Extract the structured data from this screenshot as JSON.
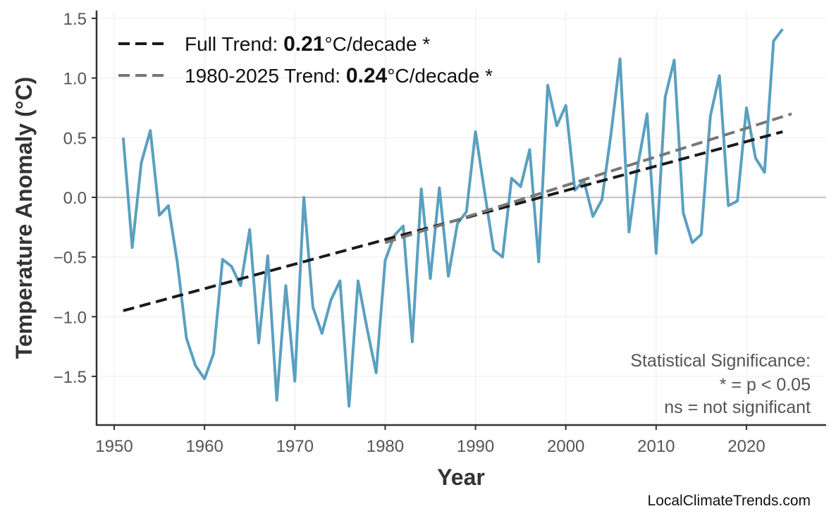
{
  "chart_data": {
    "type": "line",
    "xlabel": "Year",
    "ylabel": "Temperature Anomaly (°C)",
    "xlim": [
      1948,
      2029
    ],
    "ylim": [
      -1.9,
      1.56
    ],
    "xticks": [
      "1950",
      "1960",
      "1970",
      "1980",
      "1990",
      "2000",
      "2010",
      "2020"
    ],
    "yticks": [
      "1.5",
      "1.0",
      "0.5",
      "0.0",
      "−0.5",
      "−1.0",
      "−1.5"
    ],
    "grid": true,
    "legend_position": "top-left",
    "x": [
      1951,
      1952,
      1953,
      1954,
      1955,
      1956,
      1957,
      1958,
      1959,
      1960,
      1961,
      1962,
      1963,
      1964,
      1965,
      1966,
      1967,
      1968,
      1969,
      1970,
      1971,
      1972,
      1973,
      1974,
      1975,
      1976,
      1977,
      1978,
      1979,
      1980,
      1981,
      1982,
      1983,
      1984,
      1985,
      1986,
      1987,
      1988,
      1989,
      1990,
      1991,
      1992,
      1993,
      1994,
      1995,
      1996,
      1997,
      1998,
      1999,
      2000,
      2001,
      2002,
      2003,
      2004,
      2005,
      2006,
      2007,
      2008,
      2009,
      2010,
      2011,
      2012,
      2013,
      2014,
      2015,
      2016,
      2017,
      2018,
      2019,
      2020,
      2021,
      2022,
      2023,
      2024
    ],
    "series": [
      {
        "color": "#5aa0c0",
        "values": [
          0.5,
          -0.42,
          0.29,
          0.56,
          -0.15,
          -0.07,
          -0.55,
          -1.18,
          -1.41,
          -1.52,
          -1.31,
          -0.52,
          -0.58,
          -0.74,
          -0.27,
          -1.22,
          -0.49,
          -1.7,
          -0.74,
          -1.54,
          0.0,
          -0.92,
          -1.14,
          -0.86,
          -0.7,
          -1.75,
          -0.7,
          -1.1,
          -1.47,
          -0.53,
          -0.32,
          -0.24,
          -1.21,
          0.07,
          -0.68,
          0.08,
          -0.66,
          -0.22,
          -0.12,
          0.55,
          0.05,
          -0.44,
          -0.5,
          0.16,
          0.09,
          0.4,
          -0.54,
          0.94,
          0.6,
          0.77,
          0.06,
          0.14,
          -0.16,
          -0.02,
          0.53,
          1.16,
          -0.29,
          0.28,
          0.7,
          -0.47,
          0.84,
          1.15,
          -0.13,
          -0.38,
          -0.31,
          0.68,
          1.02,
          -0.07,
          -0.03,
          0.75,
          0.33,
          0.21,
          1.31,
          1.41
        ]
      }
    ],
    "trends": [
      {
        "label_prefix": "Full Trend: ",
        "value": "0.21",
        "label_suffix": "°C/decade *",
        "color": "#1a1a1a",
        "x": [
          1951,
          2024
        ],
        "y": [
          -0.95,
          0.55
        ]
      },
      {
        "label_prefix": "1980-2025 Trend: ",
        "value": "0.24",
        "label_suffix": "°C/decade *",
        "color": "#777777",
        "x": [
          1980,
          2025
        ],
        "y": [
          -0.38,
          0.7
        ]
      }
    ],
    "annotation": [
      "Statistical Significance:",
      "* = p < 0.05",
      "ns = not significant"
    ],
    "credit": "LocalClimateTrends.com"
  }
}
